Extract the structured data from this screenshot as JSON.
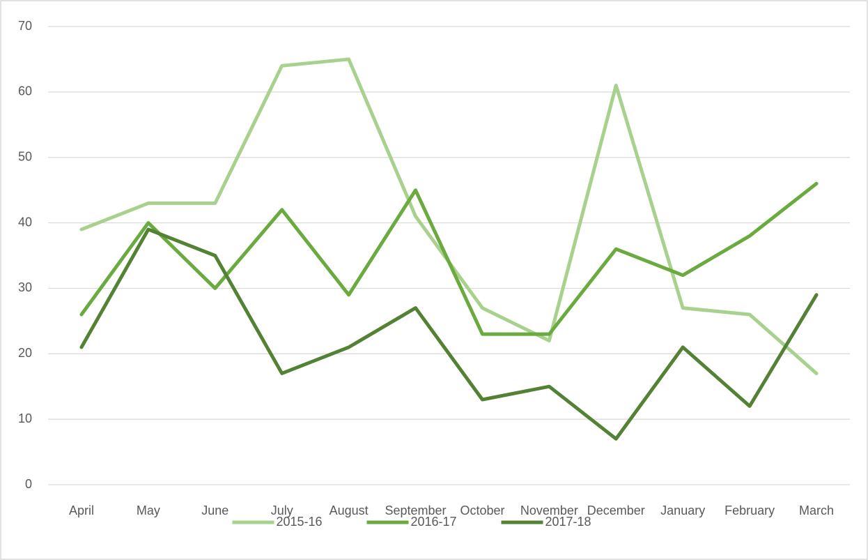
{
  "chart_data": {
    "type": "line",
    "categories": [
      "April",
      "May",
      "June",
      "July",
      "August",
      "September",
      "October",
      "November",
      "December",
      "January",
      "February",
      "March"
    ],
    "series": [
      {
        "name": "2015-16",
        "color": "#a9d18e",
        "values": [
          39,
          43,
          43,
          64,
          65,
          41,
          27,
          22,
          61,
          27,
          26,
          17
        ]
      },
      {
        "name": "2016-17",
        "color": "#6aaa3f",
        "values": [
          26,
          40,
          30,
          42,
          29,
          45,
          23,
          23,
          36,
          32,
          38,
          46
        ]
      },
      {
        "name": "2017-18",
        "color": "#548235",
        "values": [
          21,
          39,
          35,
          17,
          21,
          27,
          13,
          15,
          7,
          21,
          12,
          29
        ]
      }
    ],
    "ylim": [
      0,
      70
    ],
    "yticks": [
      0,
      10,
      20,
      30,
      40,
      50,
      60,
      70
    ],
    "grid": true,
    "legend": "bottom"
  }
}
